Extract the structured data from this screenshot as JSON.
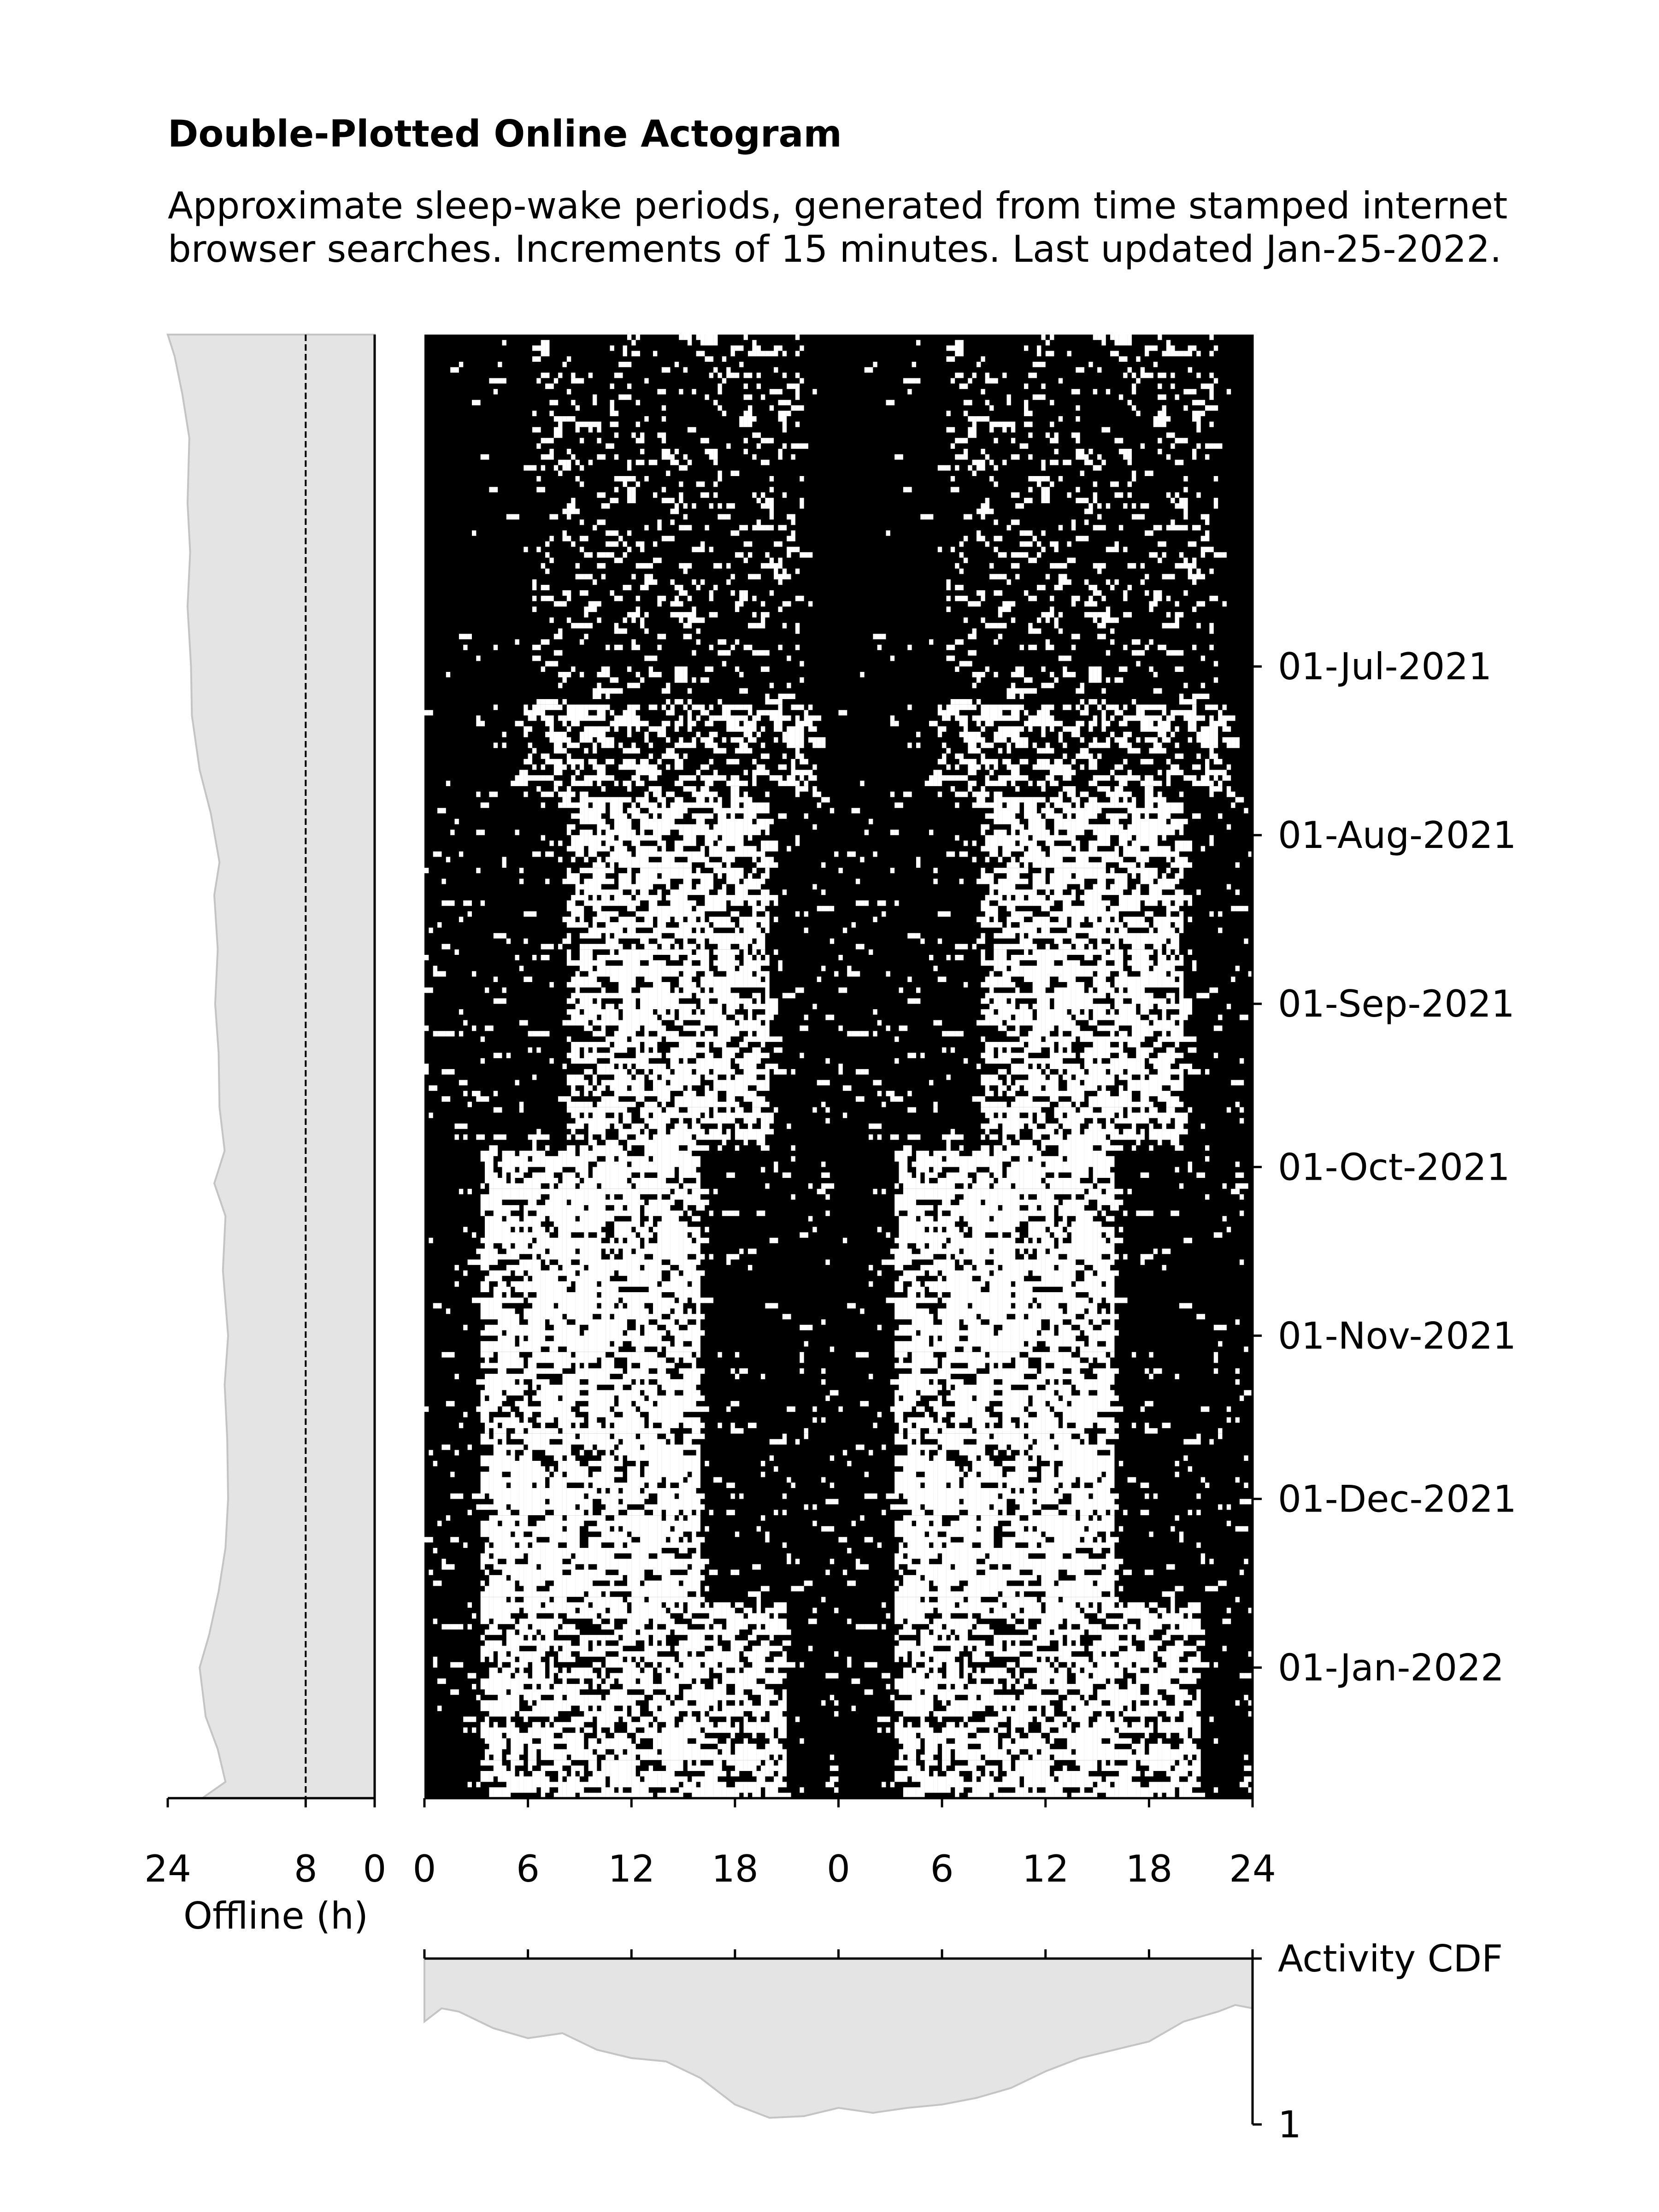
{
  "header": {
    "title": "Double-Plotted Online Actogram",
    "subtitle_line1": "Approximate sleep-wake periods, generated from time stamped internet",
    "subtitle_line2": "browser searches. Increments of 15 minutes. Last updated Jan-25-2022."
  },
  "chart_data": [
    {
      "type": "heatmap",
      "name": "actogram",
      "title": "Double-Plotted Online Actogram",
      "binary_colors": {
        "active": "#ffffff",
        "inactive": "#000000"
      },
      "increment_minutes": 15,
      "x_tick_labels": [
        "0",
        "6",
        "12",
        "18",
        "0",
        "6",
        "12",
        "18",
        "24"
      ],
      "x_range_hours": [
        0,
        48
      ],
      "y_range_dates": [
        "2021-05-01",
        "2022-01-25"
      ],
      "y_tick_labels": [
        "01-Jul-2021",
        "01-Aug-2021",
        "01-Sep-2021",
        "01-Oct-2021",
        "01-Nov-2021",
        "01-Dec-2021",
        "01-Jan-2022"
      ],
      "y_tick_dates": [
        "2021-07-01",
        "2021-08-01",
        "2021-09-01",
        "2021-10-01",
        "2021-11-01",
        "2021-12-01",
        "2022-01-01"
      ],
      "y_ticks_side": "right",
      "periods": [
        {
          "from": "2021-05-01",
          "to": "2021-07-08",
          "density": 0.12,
          "wake_center_h": 14,
          "wake_width_h": 16
        },
        {
          "from": "2021-07-08",
          "to": "2021-07-25",
          "density": 0.3,
          "wake_center_h": 14,
          "wake_width_h": 18
        },
        {
          "from": "2021-07-25",
          "to": "2021-09-28",
          "density": 0.5,
          "wake_center_h": 14,
          "wake_width_h": 12
        },
        {
          "from": "2021-09-28",
          "to": "2021-12-20",
          "density": 0.55,
          "wake_center_h": 9.5,
          "wake_width_h": 13
        },
        {
          "from": "2021-12-20",
          "to": "2022-01-25",
          "density": 0.5,
          "wake_center_h": 12,
          "wake_width_h": 18
        }
      ]
    },
    {
      "type": "area",
      "name": "offline",
      "xlabel": "Offline (h)",
      "x_tick_labels": [
        "24",
        "8",
        "0"
      ],
      "x_ticks": [
        24,
        8,
        0
      ],
      "x_reversed": true,
      "reference_line": 8,
      "fill": "#e4e4e4",
      "profile_dates": [
        "2021-05-01",
        "2021-05-05",
        "2021-05-12",
        "2021-05-20",
        "2021-06-01",
        "2021-06-10",
        "2021-06-20",
        "2021-07-01",
        "2021-07-10",
        "2021-07-20",
        "2021-07-28",
        "2021-08-06",
        "2021-08-12",
        "2021-08-22",
        "2021-09-01",
        "2021-09-10",
        "2021-09-20",
        "2021-09-28",
        "2021-10-04",
        "2021-10-10",
        "2021-10-20",
        "2021-11-01",
        "2021-11-10",
        "2021-11-20",
        "2021-12-01",
        "2021-12-10",
        "2021-12-18",
        "2021-12-26",
        "2022-01-01",
        "2022-01-10",
        "2022-01-16",
        "2022-01-22",
        "2022-01-25"
      ],
      "offline_hours": [
        24,
        23.2,
        22.3,
        21.5,
        21.7,
        21.4,
        21.7,
        21.3,
        21.2,
        20.3,
        19.0,
        18.0,
        18.6,
        18.2,
        18.5,
        18.1,
        18.0,
        17.4,
        18.6,
        17.3,
        17.6,
        17.0,
        17.4,
        17.1,
        17.0,
        17.3,
        18.1,
        19.2,
        20.3,
        19.6,
        18.2,
        17.3,
        20.0
      ]
    },
    {
      "type": "area",
      "name": "activity_cdf",
      "ylabel": "Activity CDF",
      "y_tick_labels": [
        "1"
      ],
      "fill": "#e4e4e4",
      "x_hours": [
        0,
        0.5,
        1,
        2,
        3,
        4,
        5,
        6,
        7,
        8,
        9,
        10,
        11,
        12,
        13,
        14,
        15,
        16,
        17,
        18,
        19,
        20,
        21,
        22,
        22.5,
        23,
        23.5,
        24
      ],
      "values": [
        0.38,
        0.3,
        0.32,
        0.42,
        0.48,
        0.45,
        0.55,
        0.6,
        0.62,
        0.72,
        0.88,
        0.96,
        0.95,
        0.9,
        0.93,
        0.9,
        0.88,
        0.84,
        0.78,
        0.68,
        0.6,
        0.55,
        0.5,
        0.38,
        0.35,
        0.32,
        0.28,
        0.3
      ]
    }
  ]
}
